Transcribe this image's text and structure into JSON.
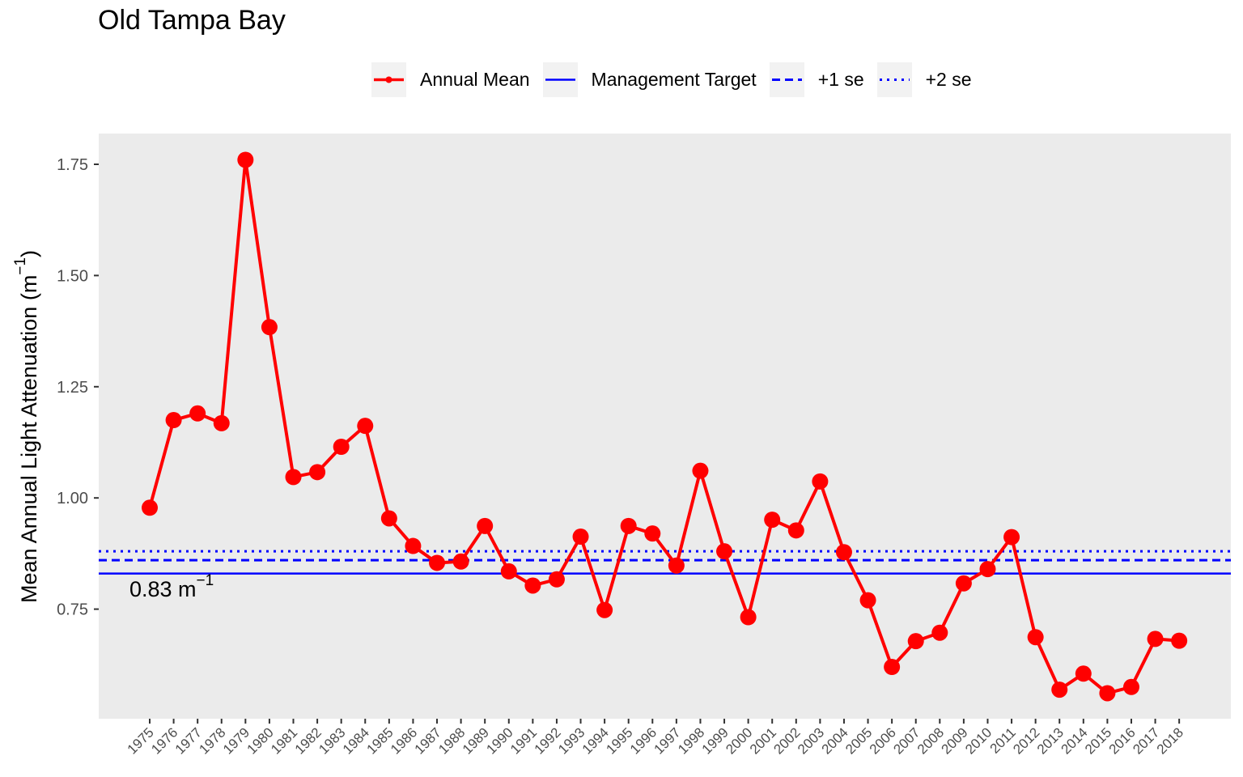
{
  "chart_data": {
    "type": "line",
    "title": "Old Tampa Bay",
    "ylabel": "Mean Annual Light Attenuation (m",
    "ylabel_superscript": "−1",
    "ylabel_close": ")",
    "xlabel": "",
    "ylim": [
      0.515,
      1.82
    ],
    "yticks": [
      0.75,
      1.0,
      1.25,
      1.5,
      1.75
    ],
    "ytick_labels": [
      "0.75",
      "1.00",
      "1.25",
      "1.50",
      "1.75"
    ],
    "x": [
      1975,
      1976,
      1977,
      1978,
      1979,
      1980,
      1981,
      1982,
      1983,
      1984,
      1985,
      1986,
      1987,
      1988,
      1989,
      1990,
      1991,
      1992,
      1993,
      1994,
      1995,
      1996,
      1997,
      1998,
      1999,
      2000,
      2001,
      2002,
      2003,
      2004,
      2005,
      2006,
      2007,
      2008,
      2009,
      2010,
      2011,
      2012,
      2013,
      2014,
      2015,
      2016,
      2017,
      2018
    ],
    "series": [
      {
        "name": "Annual Mean",
        "color": "#ff0000",
        "values": [
          0.978,
          1.175,
          1.19,
          1.168,
          1.76,
          1.384,
          1.047,
          1.058,
          1.115,
          1.162,
          0.954,
          0.892,
          0.854,
          0.857,
          0.937,
          0.835,
          0.803,
          0.817,
          0.913,
          0.748,
          0.937,
          0.92,
          0.848,
          1.061,
          0.88,
          0.732,
          0.951,
          0.927,
          1.037,
          0.878,
          0.77,
          0.62,
          0.678,
          0.697,
          0.808,
          0.84,
          0.912,
          0.687,
          0.569,
          0.605,
          0.561,
          0.575,
          0.683,
          0.679
        ]
      }
    ],
    "reference_lines": [
      {
        "name": "Management Target",
        "value": 0.83,
        "style": "solid",
        "color": "#0000ff"
      },
      {
        "name": "+1 se",
        "value": 0.86,
        "style": "dashed",
        "color": "#0000ff"
      },
      {
        "name": "+2 se",
        "value": 0.88,
        "style": "dotted",
        "color": "#0000ff"
      }
    ],
    "annotation": {
      "text": "0.83 m",
      "superscript": "−1"
    },
    "legend": [
      "Annual Mean",
      "Management Target",
      "+1 se",
      "+2 se"
    ],
    "legend_position": "top",
    "grid": false,
    "panel_background": "#ebebeb"
  }
}
